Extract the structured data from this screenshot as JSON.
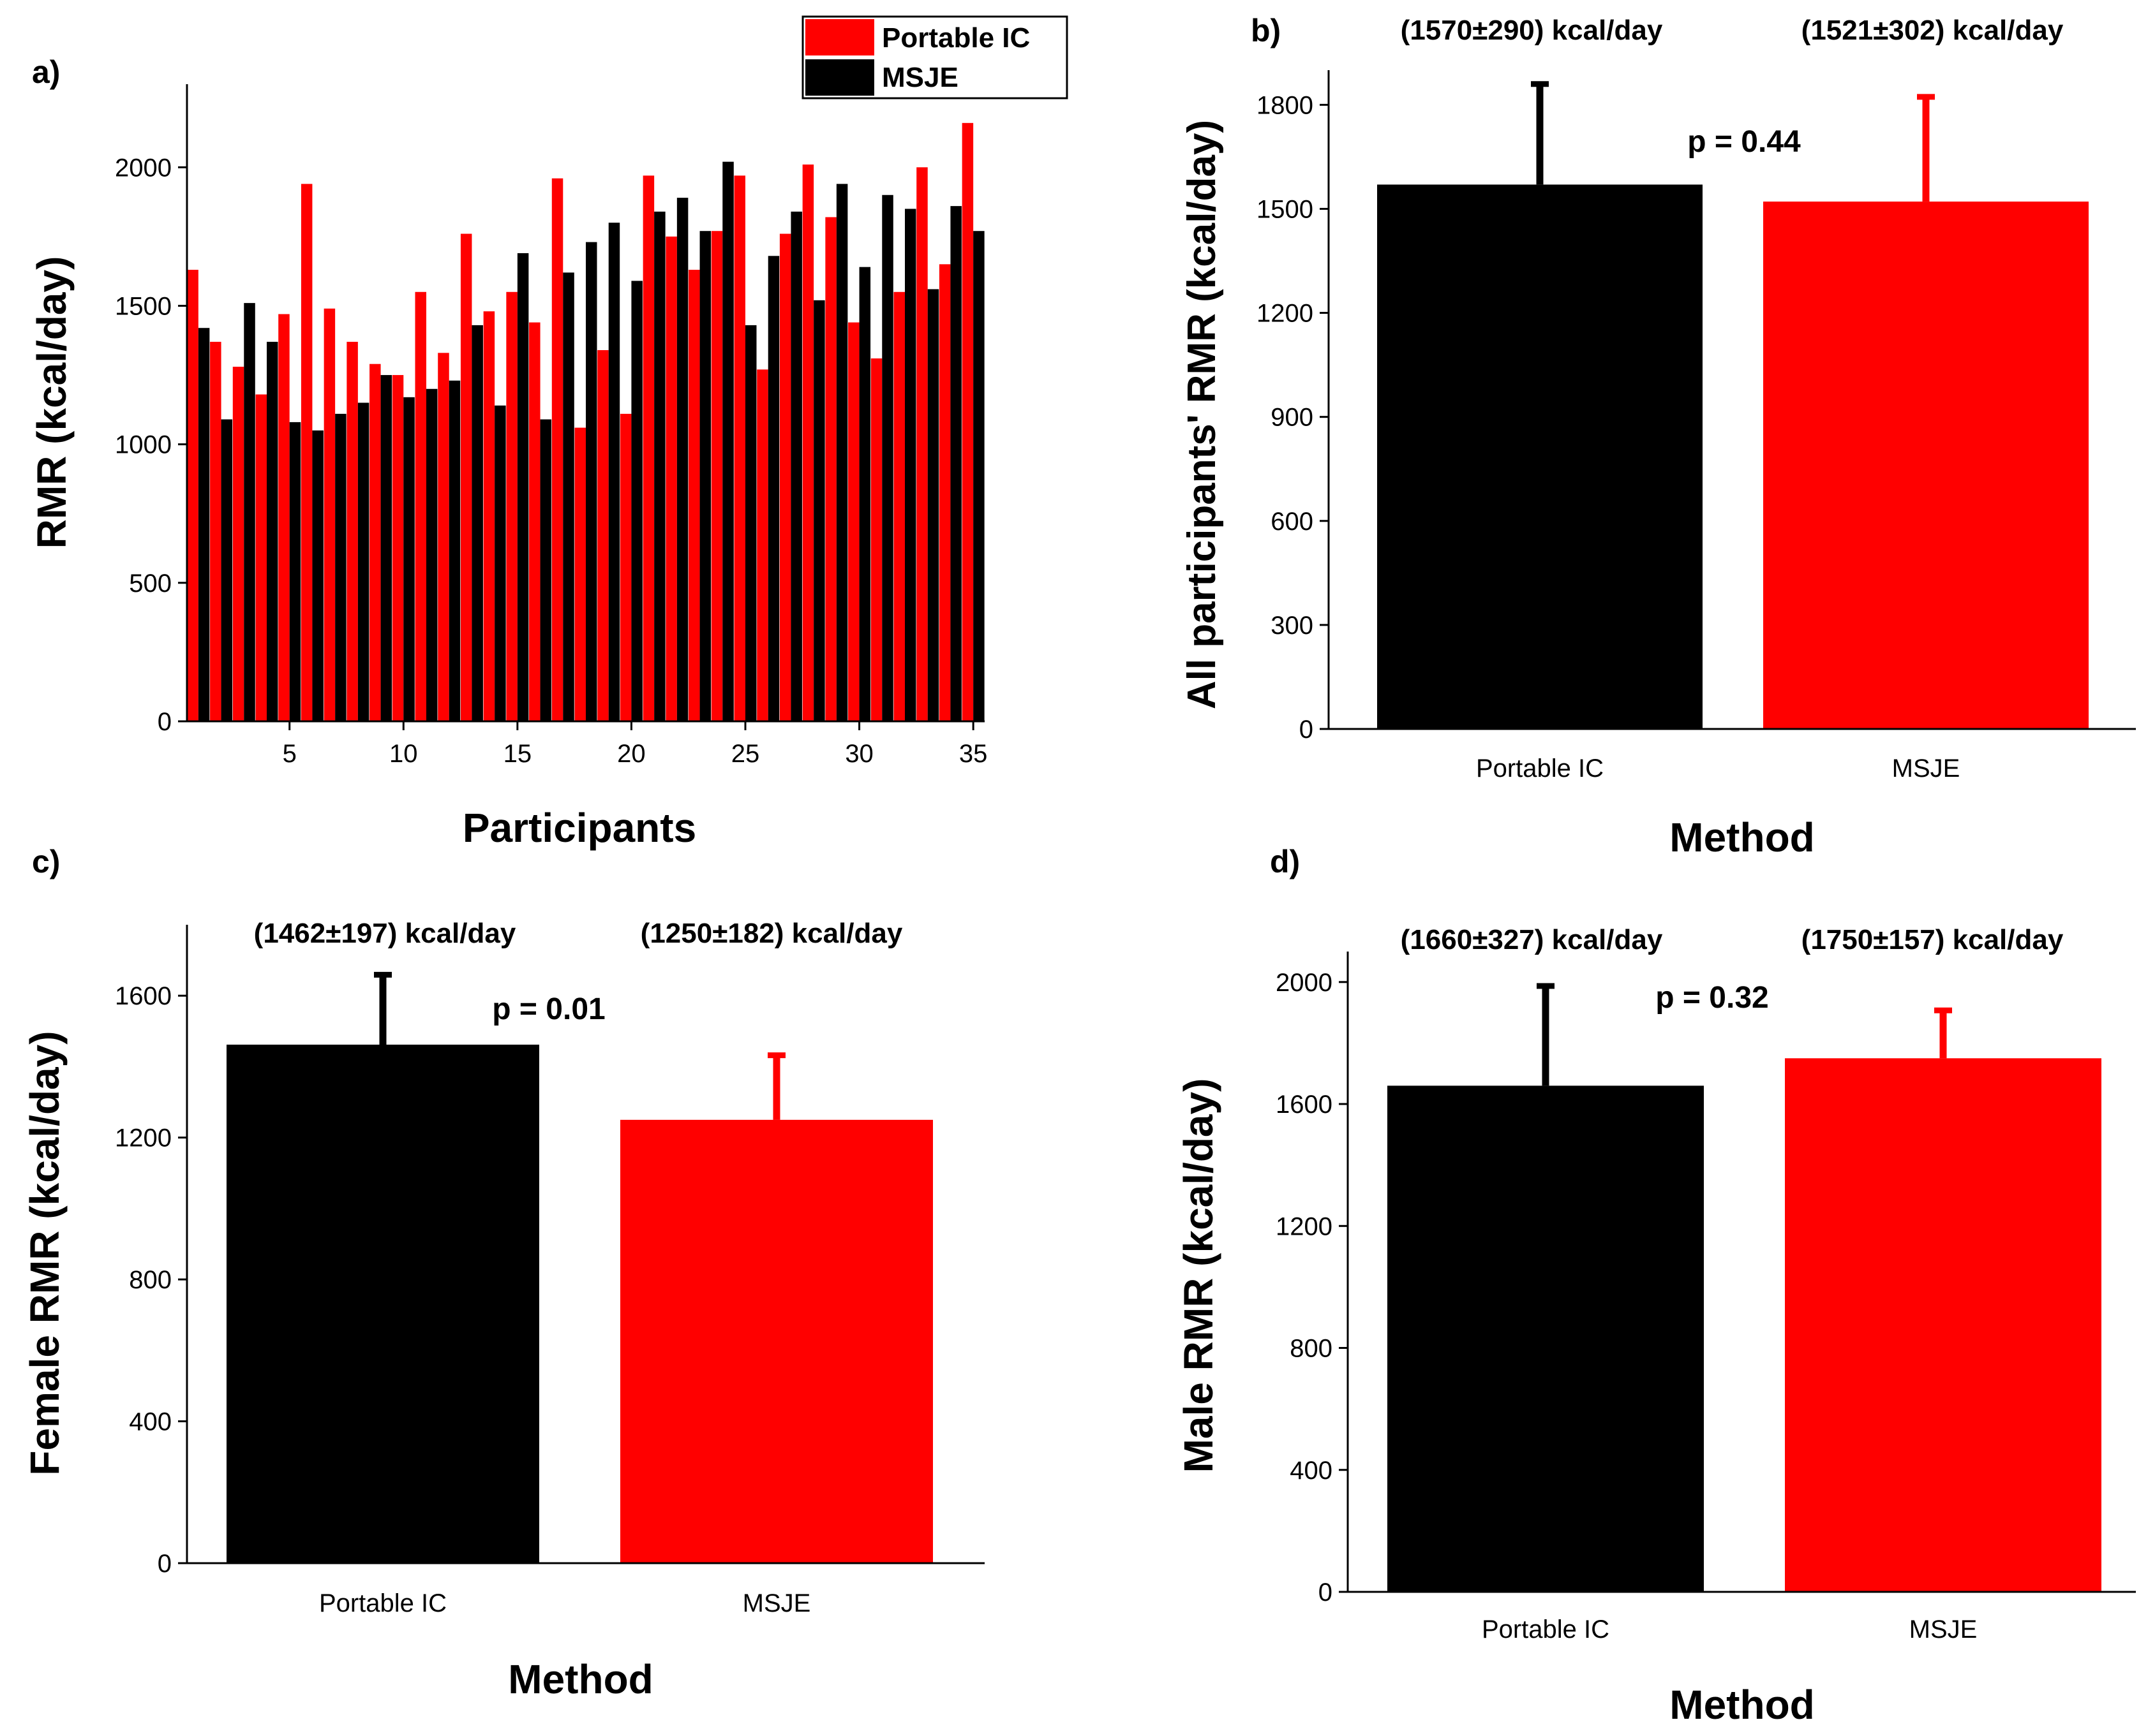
{
  "colors": {
    "portable_ic": "#ff0000",
    "msje": "#000000",
    "background": "#ffffff"
  },
  "chart_data": [
    {
      "id": "a",
      "type": "bar",
      "panel_label": "a)",
      "title": "",
      "xlabel": "Participants",
      "ylabel": "RMR (kcal/day)",
      "ylim": [
        0,
        2300
      ],
      "xlim": [
        0.5,
        35.5
      ],
      "yticks": [
        0,
        500,
        1000,
        1500,
        2000
      ],
      "xticks": [
        5,
        10,
        15,
        20,
        25,
        30,
        35
      ],
      "legend_position": "top-right",
      "x": [
        1,
        2,
        3,
        4,
        5,
        6,
        7,
        8,
        9,
        10,
        11,
        12,
        13,
        14,
        15,
        16,
        17,
        18,
        19,
        20,
        21,
        22,
        23,
        24,
        25,
        26,
        27,
        28,
        29,
        30,
        31,
        32,
        33,
        34,
        35
      ],
      "series": [
        {
          "name": "Portable IC",
          "color": "#ff0000",
          "values": [
            1630,
            1370,
            1280,
            1180,
            1470,
            1940,
            1490,
            1370,
            1290,
            1250,
            1550,
            1330,
            1760,
            1480,
            1550,
            1440,
            1960,
            1060,
            1340,
            1110,
            1970,
            1750,
            1630,
            1770,
            1970,
            1270,
            1760,
            2010,
            1820,
            1440,
            1310,
            1550,
            2000,
            1650,
            2160
          ]
        },
        {
          "name": "MSJE",
          "color": "#000000",
          "values": [
            1420,
            1090,
            1510,
            1370,
            1080,
            1050,
            1110,
            1150,
            1250,
            1170,
            1200,
            1230,
            1430,
            1140,
            1690,
            1090,
            1620,
            1730,
            1800,
            1590,
            1840,
            1890,
            1770,
            2020,
            1430,
            1680,
            1840,
            1520,
            1940,
            1640,
            1900,
            1850,
            1560,
            1860,
            1770
          ]
        }
      ]
    },
    {
      "id": "b",
      "type": "bar",
      "panel_label": "b)",
      "title": "",
      "xlabel": "Method",
      "ylabel": "All participants' RMR (kcal/day)",
      "ylim": [
        0,
        1900
      ],
      "yticks": [
        0,
        300,
        600,
        900,
        1200,
        1500,
        1800
      ],
      "categories": [
        "Portable IC",
        "MSJE"
      ],
      "values": [
        1570,
        1521
      ],
      "errors": [
        290,
        302
      ],
      "bar_colors": [
        "#000000",
        "#ff0000"
      ],
      "annotations": [
        "(1570±290) kcal/day",
        "(1521±302) kcal/day"
      ],
      "p_value": "p = 0.44"
    },
    {
      "id": "c",
      "type": "bar",
      "panel_label": "c)",
      "title": "",
      "xlabel": "Method",
      "ylabel": "Female RMR (kcal/day)",
      "ylim": [
        0,
        1800
      ],
      "yticks": [
        0,
        400,
        800,
        1200,
        1600
      ],
      "categories": [
        "Portable IC",
        "MSJE"
      ],
      "values": [
        1462,
        1250
      ],
      "errors": [
        197,
        182
      ],
      "bar_colors": [
        "#000000",
        "#ff0000"
      ],
      "annotations": [
        "(1462±197) kcal/day",
        "(1250±182) kcal/day"
      ],
      "p_value": "p = 0.01"
    },
    {
      "id": "d",
      "type": "bar",
      "panel_label": "d)",
      "title": "",
      "xlabel": "Method",
      "ylabel": "Male RMR (kcal/day)",
      "ylim": [
        0,
        2100
      ],
      "yticks": [
        0,
        400,
        800,
        1200,
        1600,
        2000
      ],
      "categories": [
        "Portable IC",
        "MSJE"
      ],
      "values": [
        1660,
        1750
      ],
      "errors": [
        327,
        157
      ],
      "bar_colors": [
        "#000000",
        "#ff0000"
      ],
      "annotations": [
        "(1660±327) kcal/day",
        "(1750±157) kcal/day"
      ],
      "p_value": "p = 0.32"
    }
  ]
}
